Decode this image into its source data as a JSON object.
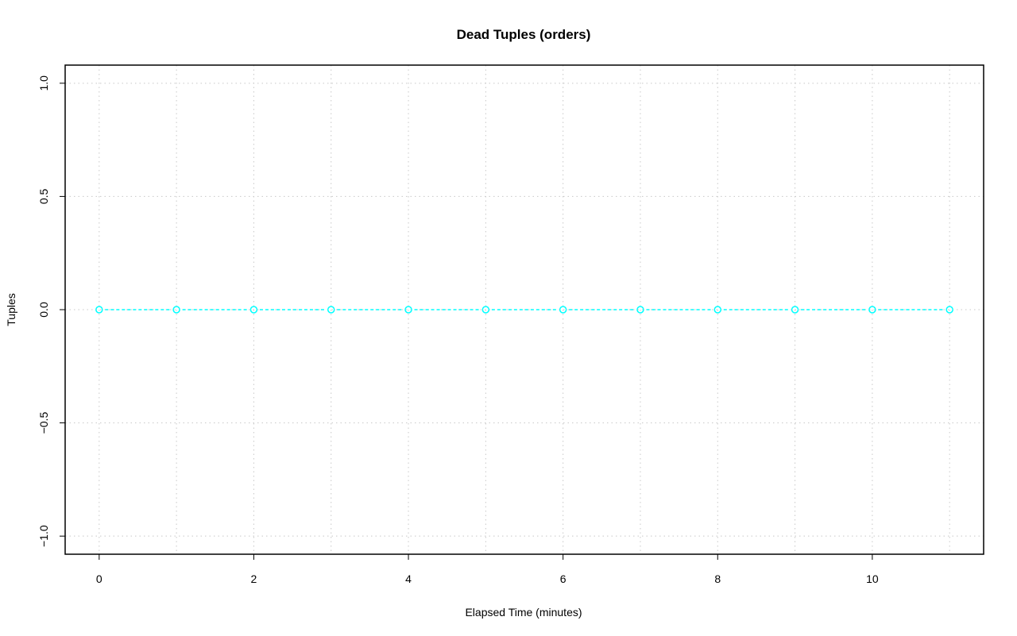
{
  "chart_data": {
    "type": "line",
    "title": "Dead Tuples (orders)",
    "xlabel": "Elapsed Time (minutes)",
    "ylabel": "Tuples",
    "xlim": [
      -0.44,
      11.44
    ],
    "ylim": [
      -1.08,
      1.08
    ],
    "xticks": [
      0,
      2,
      4,
      6,
      8,
      10
    ],
    "yticks": [
      -1.0,
      -0.5,
      0.0,
      0.5,
      1.0
    ],
    "xtick_labels": [
      "0",
      "2",
      "4",
      "6",
      "8",
      "10"
    ],
    "ytick_labels": [
      "−1.0",
      "−0.5",
      "0.0",
      "0.5",
      "1.0"
    ],
    "grid": true,
    "grid_x": [
      0,
      1,
      2,
      3,
      4,
      5,
      6,
      7,
      8,
      9,
      10,
      11
    ],
    "series": [
      {
        "x": [
          0,
          1,
          2,
          3,
          4,
          5,
          6,
          7,
          8,
          9,
          10,
          11
        ],
        "values": [
          0,
          0,
          0,
          0,
          0,
          0,
          0,
          0,
          0,
          0,
          0,
          0
        ],
        "color": "#00FFFF",
        "line": "dashed",
        "marker": "open-circle"
      }
    ]
  }
}
